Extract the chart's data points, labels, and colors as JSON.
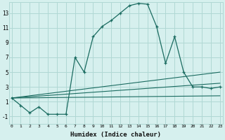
{
  "xlabel": "Humidex (Indice chaleur)",
  "background_color": "#d6f0ee",
  "grid_color": "#b0d8d4",
  "line_color": "#1a6b60",
  "x_ticks": [
    0,
    1,
    2,
    3,
    4,
    5,
    6,
    7,
    8,
    9,
    10,
    11,
    12,
    13,
    14,
    15,
    16,
    17,
    18,
    19,
    20,
    21,
    22,
    23
  ],
  "y_ticks": [
    -1,
    1,
    3,
    5,
    7,
    9,
    11,
    13
  ],
  "xlim": [
    -0.3,
    23.3
  ],
  "ylim": [
    -2.0,
    14.5
  ],
  "line1_x": [
    0,
    1,
    2,
    3,
    4,
    5,
    6,
    7,
    8,
    9,
    10,
    11,
    12,
    13,
    14,
    15,
    16,
    17,
    18,
    19,
    20,
    21,
    22,
    23
  ],
  "line1_y": [
    1.5,
    0.5,
    -0.5,
    0.3,
    -0.7,
    -0.7,
    -0.7,
    7.0,
    5.0,
    9.8,
    11.2,
    12.0,
    13.0,
    14.0,
    14.3,
    14.2,
    11.2,
    6.2,
    9.8,
    5.0,
    3.0,
    3.0,
    2.8,
    3.0
  ],
  "line2_x": [
    0,
    23
  ],
  "line2_y": [
    1.5,
    1.8
  ],
  "line3_x": [
    0,
    23
  ],
  "line3_y": [
    1.5,
    3.5
  ],
  "line4_x": [
    0,
    23
  ],
  "line4_y": [
    1.5,
    5.0
  ]
}
